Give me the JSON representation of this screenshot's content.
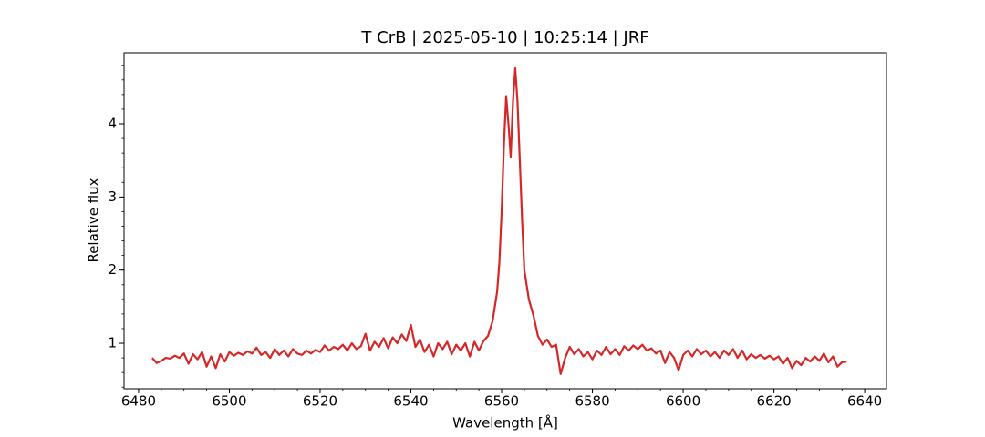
{
  "chart_data": {
    "type": "line",
    "title": "T CrB | 2025-05-10 | 10:25:14 | JRF",
    "xlabel": "Wavelength [Å]",
    "ylabel": "Relative flux",
    "xlim": [
      6476.8,
      6644.8
    ],
    "ylim": [
      0.378,
      4.971
    ],
    "xticks": [
      6480,
      6500,
      6520,
      6540,
      6560,
      6580,
      6600,
      6620,
      6640
    ],
    "yticks": [
      1,
      2,
      3,
      4
    ],
    "xminorticks": [
      6480,
      6485,
      6490,
      6495,
      6500,
      6505,
      6510,
      6515,
      6520,
      6525,
      6530,
      6535,
      6540,
      6545,
      6550,
      6555,
      6560,
      6565,
      6570,
      6575,
      6580,
      6585,
      6590,
      6595,
      6600,
      6605,
      6610,
      6615,
      6620,
      6625,
      6630,
      6635,
      6640
    ],
    "yminorticks": [
      0.4,
      0.6,
      0.8,
      1.0,
      1.2,
      1.4,
      1.6,
      1.8,
      2.0,
      2.2,
      2.4,
      2.6,
      2.8,
      3.0,
      3.2,
      3.4,
      3.6,
      3.8,
      4.0,
      4.2,
      4.4,
      4.6,
      4.8
    ],
    "series": [
      {
        "color": "#d62728",
        "x": [
          6483,
          6484,
          6485,
          6486,
          6487,
          6488,
          6489,
          6490,
          6491,
          6492,
          6493,
          6494,
          6495,
          6496,
          6497,
          6498,
          6499,
          6500,
          6501,
          6502,
          6503,
          6504,
          6505,
          6506,
          6507,
          6508,
          6509,
          6510,
          6511,
          6512,
          6513,
          6514,
          6515,
          6516,
          6517,
          6518,
          6519,
          6520,
          6521,
          6522,
          6523,
          6524,
          6525,
          6526,
          6527,
          6528,
          6529,
          6530,
          6531,
          6532,
          6533,
          6534,
          6535,
          6536,
          6537,
          6538,
          6539,
          6540,
          6541,
          6542,
          6543,
          6544,
          6545,
          6546,
          6547,
          6548,
          6549,
          6550,
          6551,
          6552,
          6553,
          6554,
          6555,
          6556,
          6557,
          6558,
          6559,
          6559.5,
          6560,
          6560.5,
          6561,
          6561.5,
          6562,
          6562.5,
          6563,
          6563.5,
          6564,
          6564.5,
          6565,
          6566,
          6567,
          6568,
          6569,
          6570,
          6571,
          6572,
          6573,
          6574,
          6575,
          6576,
          6577,
          6578,
          6579,
          6580,
          6581,
          6582,
          6583,
          6584,
          6585,
          6586,
          6587,
          6588,
          6589,
          6590,
          6591,
          6592,
          6593,
          6594,
          6595,
          6596,
          6597,
          6598,
          6599,
          6600,
          6601,
          6602,
          6603,
          6604,
          6605,
          6606,
          6607,
          6608,
          6609,
          6610,
          6611,
          6612,
          6613,
          6614,
          6615,
          6616,
          6617,
          6618,
          6619,
          6620,
          6621,
          6622,
          6623,
          6624,
          6625,
          6626,
          6627,
          6628,
          6629,
          6630,
          6631,
          6632,
          6633,
          6634,
          6635,
          6636
        ],
        "values": [
          0.8,
          0.73,
          0.76,
          0.8,
          0.79,
          0.83,
          0.8,
          0.86,
          0.72,
          0.85,
          0.78,
          0.88,
          0.68,
          0.82,
          0.66,
          0.85,
          0.75,
          0.88,
          0.83,
          0.87,
          0.84,
          0.89,
          0.86,
          0.94,
          0.84,
          0.88,
          0.8,
          0.92,
          0.84,
          0.9,
          0.82,
          0.92,
          0.86,
          0.84,
          0.9,
          0.86,
          0.91,
          0.88,
          0.97,
          0.9,
          0.95,
          0.92,
          0.98,
          0.9,
          1.0,
          0.92,
          0.96,
          1.13,
          0.9,
          1.02,
          0.95,
          1.07,
          0.93,
          1.08,
          1.0,
          1.12,
          1.03,
          1.25,
          0.95,
          1.05,
          0.88,
          0.98,
          0.82,
          1.0,
          0.92,
          1.02,
          0.85,
          0.98,
          0.9,
          1.0,
          0.82,
          1.02,
          0.9,
          1.03,
          1.1,
          1.3,
          1.7,
          2.1,
          2.8,
          3.7,
          4.38,
          4.0,
          3.55,
          4.3,
          4.76,
          4.3,
          3.5,
          2.7,
          2.0,
          1.6,
          1.38,
          1.1,
          0.98,
          1.05,
          0.95,
          0.98,
          0.58,
          0.8,
          0.95,
          0.85,
          0.92,
          0.82,
          0.88,
          0.78,
          0.9,
          0.84,
          0.95,
          0.85,
          0.92,
          0.84,
          0.96,
          0.9,
          0.97,
          0.92,
          0.98,
          0.9,
          0.93,
          0.86,
          0.9,
          0.73,
          0.88,
          0.8,
          0.63,
          0.84,
          0.9,
          0.82,
          0.92,
          0.85,
          0.9,
          0.82,
          0.88,
          0.8,
          0.9,
          0.84,
          0.92,
          0.8,
          0.9,
          0.78,
          0.85,
          0.8,
          0.84,
          0.79,
          0.83,
          0.78,
          0.82,
          0.72,
          0.8,
          0.66,
          0.76,
          0.7,
          0.8,
          0.75,
          0.82,
          0.76,
          0.86,
          0.74,
          0.82,
          0.68,
          0.74,
          0.75
        ]
      }
    ]
  }
}
